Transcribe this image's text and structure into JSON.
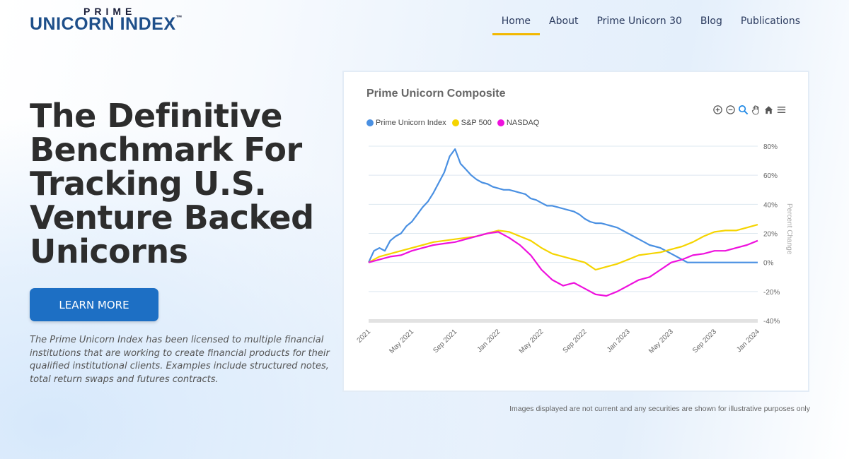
{
  "logo": {
    "top": "PRIME",
    "main": "UNICORN INDEX",
    "tm": "™"
  },
  "nav": [
    {
      "label": "Home",
      "active": true
    },
    {
      "label": "About",
      "active": false
    },
    {
      "label": "Prime Unicorn 30",
      "active": false
    },
    {
      "label": "Blog",
      "active": false
    },
    {
      "label": "Publications",
      "active": false
    }
  ],
  "hero": {
    "title": "The Definitive Benchmark For Tracking U.S. Venture Backed Unicorns",
    "button_label": "LEARN MORE",
    "description": "The Prime Unicorn Index has been licensed to multiple financial institutions that are working to create financial products for their qualified institutional clients.  Examples include structured notes, total return swaps and futures contracts."
  },
  "toolbar": [
    "zoom-in-icon",
    "zoom-out-icon",
    "magnifier-icon",
    "pan-hand-icon",
    "home-icon",
    "menu-icon"
  ],
  "disclaimer": "Images displayed are not current and any securities are shown for illustrative purposes only",
  "chart_data": {
    "type": "line",
    "title": "Prime Unicorn Composite",
    "ylabel": "Percent Change",
    "ylim": [
      -40,
      80
    ],
    "yticks": [
      "80%",
      "60%",
      "40%",
      "20%",
      "0%",
      "-20%",
      "-40%"
    ],
    "xticks": [
      "2021",
      "May 2021",
      "Sep 2021",
      "Jan 2022",
      "May 2022",
      "Sep 2022",
      "Jan 2023",
      "May 2023",
      "Sep 2023",
      "Jan 2024"
    ],
    "legend_position": "top-left",
    "series": [
      {
        "name": "Prime Unicorn Index",
        "color": "#4a90e2",
        "x": [
          0,
          0.5,
          1,
          1.5,
          2,
          2.5,
          3,
          3.5,
          4,
          4.5,
          5,
          5.5,
          6,
          6.5,
          7,
          7.5,
          8,
          8.5,
          9,
          9.5,
          10,
          10.5,
          11,
          11.5,
          12,
          12.5,
          13,
          13.5,
          14,
          14.5,
          15,
          15.5,
          16,
          16.5,
          17,
          17.5,
          18,
          18.5,
          19,
          19.5,
          20,
          20.5,
          21,
          21.5,
          22,
          22.5,
          23,
          23.5,
          24,
          24.5,
          25,
          25.5,
          26,
          26.5,
          27,
          27.5,
          28,
          28.5,
          29,
          29.5,
          30,
          30.5,
          31,
          31.5,
          32,
          32.5,
          33,
          33.5,
          34,
          34.5,
          35,
          35.5,
          36
        ],
        "values": [
          0,
          8,
          10,
          8,
          15,
          18,
          20,
          25,
          28,
          33,
          38,
          42,
          48,
          55,
          62,
          73,
          78,
          68,
          64,
          60,
          57,
          55,
          54,
          52,
          51,
          50,
          50,
          49,
          48,
          47,
          44,
          43,
          41,
          39,
          39,
          38,
          37,
          36,
          35,
          33,
          30,
          28,
          27,
          27,
          26,
          25,
          24,
          22,
          20,
          18,
          16,
          14,
          12,
          11,
          10,
          8,
          6,
          4,
          2,
          0,
          0,
          0,
          0,
          0,
          0,
          0,
          0,
          0,
          0,
          0,
          0,
          0,
          0
        ]
      },
      {
        "name": "S&P 500",
        "color": "#f5d400",
        "x": [
          0,
          1,
          2,
          3,
          4,
          5,
          6,
          7,
          8,
          9,
          10,
          11,
          12,
          13,
          14,
          15,
          16,
          17,
          18,
          19,
          20,
          21,
          22,
          23,
          24,
          25,
          26,
          27,
          28,
          29,
          30,
          31,
          32,
          33,
          34,
          35,
          36
        ],
        "values": [
          0,
          4,
          6,
          8,
          10,
          12,
          14,
          15,
          16,
          17,
          18,
          20,
          22,
          21,
          18,
          15,
          10,
          6,
          4,
          2,
          0,
          -5,
          -3,
          -1,
          2,
          5,
          6,
          7,
          9,
          11,
          14,
          18,
          21,
          22,
          22,
          24,
          26
        ]
      },
      {
        "name": "NASDAQ",
        "color": "#ee11dd",
        "x": [
          0,
          1,
          2,
          3,
          4,
          5,
          6,
          7,
          8,
          9,
          10,
          11,
          12,
          13,
          14,
          15,
          16,
          17,
          18,
          19,
          20,
          21,
          22,
          23,
          24,
          25,
          26,
          27,
          28,
          29,
          30,
          31,
          32,
          33,
          34,
          35,
          36
        ],
        "values": [
          0,
          2,
          4,
          5,
          8,
          10,
          12,
          13,
          14,
          16,
          18,
          20,
          21,
          17,
          12,
          5,
          -5,
          -12,
          -16,
          -14,
          -18,
          -22,
          -23,
          -20,
          -16,
          -12,
          -10,
          -5,
          0,
          2,
          5,
          6,
          8,
          8,
          10,
          12,
          15
        ]
      }
    ]
  }
}
